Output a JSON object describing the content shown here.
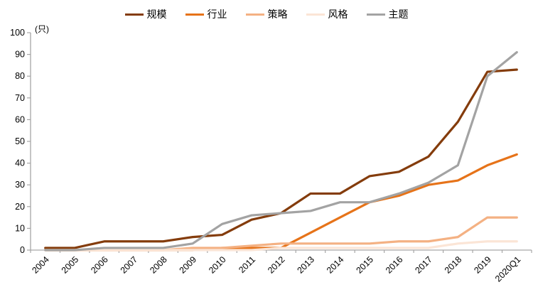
{
  "chart_data": {
    "type": "line",
    "title": "",
    "ylabel": "(只)",
    "xlabel": "",
    "ylim": [
      0,
      100
    ],
    "ytick_step": 10,
    "grid": false,
    "legend_position": "top-center",
    "axis_color": "#a6a6a6",
    "label_color": "#000000",
    "categories": [
      "2004",
      "2005",
      "2006",
      "2007",
      "2008",
      "2009",
      "2010",
      "2011",
      "2012",
      "2013",
      "2014",
      "2015",
      "2016",
      "2017",
      "2018",
      "2019",
      "2020Q1"
    ],
    "series": [
      {
        "key": "scale",
        "name": "规模",
        "color": "#843C0C",
        "values": [
          1,
          1,
          4,
          4,
          4,
          6,
          7,
          14,
          17,
          26,
          26,
          34,
          36,
          43,
          59,
          82,
          83
        ]
      },
      {
        "key": "industry",
        "name": "行业",
        "color": "#E67319",
        "values": [
          0,
          0,
          0,
          0,
          0,
          0,
          1,
          1,
          1,
          8,
          15,
          22,
          25,
          30,
          32,
          39,
          44
        ]
      },
      {
        "key": "strategy",
        "name": "策略",
        "color": "#F4B183",
        "values": [
          0,
          0,
          0,
          0,
          0,
          1,
          1,
          2,
          3,
          3,
          3,
          3,
          4,
          4,
          6,
          15,
          15
        ]
      },
      {
        "key": "style",
        "name": "风格",
        "color": "#FBE5D6",
        "values": [
          0,
          0,
          0,
          0,
          0,
          0,
          0,
          0,
          1,
          1,
          1,
          1,
          1,
          1,
          3,
          4,
          4
        ]
      },
      {
        "key": "theme",
        "name": "主题",
        "color": "#A3A3A3",
        "values": [
          0,
          0,
          1,
          1,
          1,
          3,
          12,
          16,
          17,
          18,
          22,
          22,
          26,
          31,
          39,
          80,
          91
        ]
      }
    ]
  }
}
